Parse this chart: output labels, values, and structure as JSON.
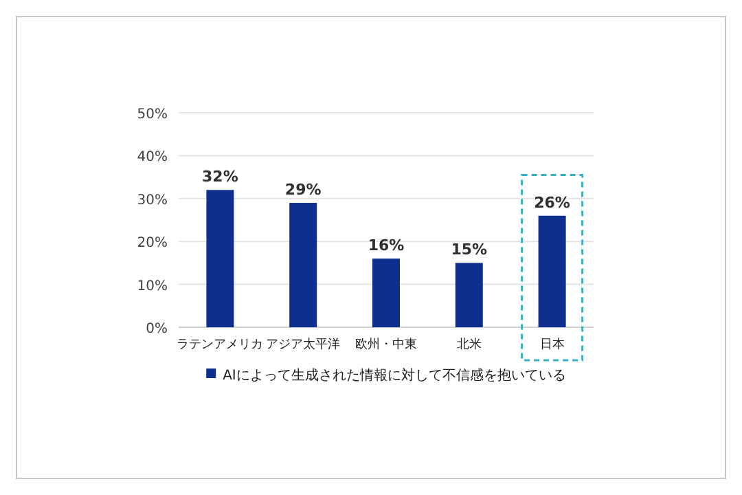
{
  "chart_data": {
    "type": "bar",
    "categories": [
      "ラテンアメリカ",
      "アジア太平洋",
      "欧州・中東",
      "北米",
      "日本"
    ],
    "series": [
      {
        "name": "AIによって生成された情報に対して不信感を抱いている",
        "color": "#0f2f8f",
        "values": [
          32,
          29,
          16,
          15,
          26
        ],
        "value_labels": [
          "32%",
          "29%",
          "16%",
          "15%",
          "26%"
        ]
      }
    ],
    "ylim": [
      0,
      50
    ],
    "yticks": [
      {
        "value": 0,
        "label": "0%"
      },
      {
        "value": 10,
        "label": "10%"
      },
      {
        "value": 20,
        "label": "20%"
      },
      {
        "value": 30,
        "label": "30%"
      },
      {
        "value": 40,
        "label": "40%"
      },
      {
        "value": 50,
        "label": "50%"
      }
    ],
    "grid": "y",
    "legend": "bottom"
  }
}
